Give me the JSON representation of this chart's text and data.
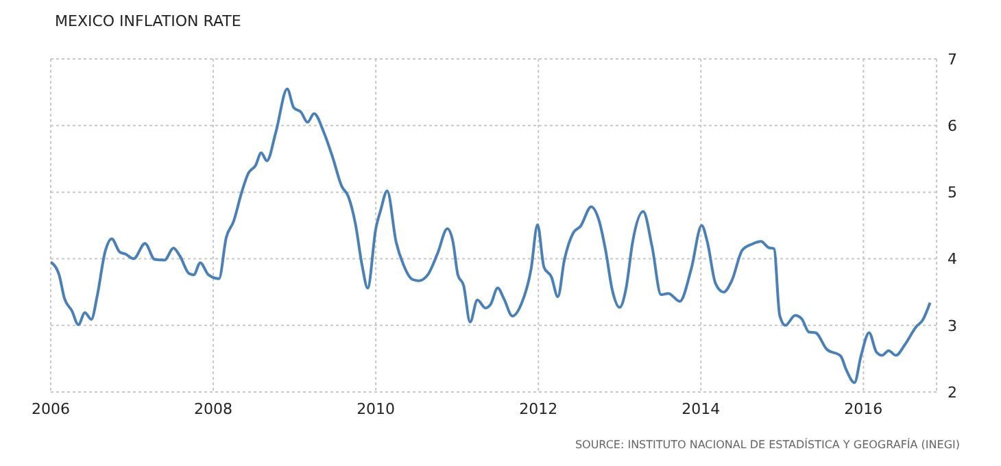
{
  "chart_data": {
    "type": "line",
    "title": "MEXICO INFLATION RATE",
    "annotations": [
      "SOURCE: INSTITUTO NACIONAL DE ESTADÍSTICA Y GEOGRAFÍA (INEGI)"
    ],
    "x": [
      2006.0,
      2006.1,
      2006.17,
      2006.26,
      2006.34,
      2006.42,
      2006.5,
      2006.57,
      2006.67,
      2006.75,
      2006.85,
      2006.92,
      2007.02,
      2007.16,
      2007.28,
      2007.4,
      2007.51,
      2007.59,
      2007.7,
      2007.76,
      2007.84,
      2007.94,
      2008.07,
      2008.16,
      2008.25,
      2008.35,
      2008.43,
      2008.52,
      2008.59,
      2008.66,
      2008.77,
      2008.91,
      2008.99,
      2009.08,
      2009.16,
      2009.24,
      2009.36,
      2009.47,
      2009.58,
      2009.66,
      2009.75,
      2009.83,
      2009.9,
      2010.0,
      2010.06,
      2010.14,
      2010.25,
      2010.34,
      2010.45,
      2010.53,
      2010.64,
      2010.76,
      2010.88,
      2010.95,
      2011.01,
      2011.08,
      2011.16,
      2011.25,
      2011.35,
      2011.41,
      2011.5,
      2011.58,
      2011.68,
      2011.79,
      2011.91,
      2011.99,
      2012.07,
      2012.16,
      2012.24,
      2012.32,
      2012.43,
      2012.52,
      2012.65,
      2012.75,
      2012.83,
      2012.91,
      2013.0,
      2013.08,
      2013.16,
      2013.29,
      2013.4,
      2013.51,
      2013.6,
      2013.74,
      2013.88,
      2014.01,
      2014.08,
      2014.18,
      2014.28,
      2014.38,
      2014.51,
      2014.63,
      2014.74,
      2014.83,
      2014.9,
      2014.97,
      2015.04,
      2015.16,
      2015.24,
      2015.33,
      2015.41,
      2015.55,
      2015.72,
      2015.79,
      2015.89,
      2015.97,
      2016.07,
      2016.16,
      2016.23,
      2016.31,
      2016.4,
      2016.51,
      2016.65,
      2016.73,
      2016.82
    ],
    "series": [
      {
        "color": "#4a80b5",
        "values": [
          3.95,
          3.77,
          3.4,
          3.22,
          3.01,
          3.19,
          3.09,
          3.43,
          4.11,
          4.3,
          4.1,
          4.07,
          4.0,
          4.23,
          3.99,
          3.98,
          4.16,
          4.04,
          3.78,
          3.76,
          3.94,
          3.76,
          3.7,
          4.32,
          4.56,
          5.0,
          5.28,
          5.4,
          5.59,
          5.47,
          5.9,
          6.55,
          6.27,
          6.2,
          6.05,
          6.18,
          5.9,
          5.52,
          5.09,
          4.94,
          4.52,
          3.91,
          3.56,
          4.45,
          4.73,
          5.02,
          4.25,
          3.91,
          3.69,
          3.67,
          3.76,
          4.08,
          4.45,
          4.25,
          3.76,
          3.6,
          3.05,
          3.38,
          3.26,
          3.31,
          3.56,
          3.39,
          3.14,
          3.32,
          3.84,
          4.51,
          3.87,
          3.73,
          3.43,
          3.98,
          4.39,
          4.49,
          4.78,
          4.56,
          4.11,
          3.53,
          3.27,
          3.56,
          4.25,
          4.71,
          4.18,
          3.46,
          3.48,
          3.36,
          3.84,
          4.5,
          4.25,
          3.63,
          3.5,
          3.67,
          4.13,
          4.22,
          4.26,
          4.17,
          4.15,
          3.15,
          3.0,
          3.15,
          3.1,
          2.9,
          2.89,
          2.64,
          2.54,
          2.33,
          2.14,
          2.54,
          2.89,
          2.6,
          2.55,
          2.62,
          2.55,
          2.71,
          2.98,
          3.08,
          3.34
        ]
      }
    ],
    "xlim": [
      2006,
      2016.9
    ],
    "xticks": [
      2006,
      2008,
      2010,
      2012,
      2014,
      2016
    ],
    "ylim": [
      2,
      7
    ],
    "yticks": [
      2,
      3,
      4,
      5,
      6,
      7
    ],
    "grid": true,
    "line_style": "solid",
    "marker": "none"
  }
}
